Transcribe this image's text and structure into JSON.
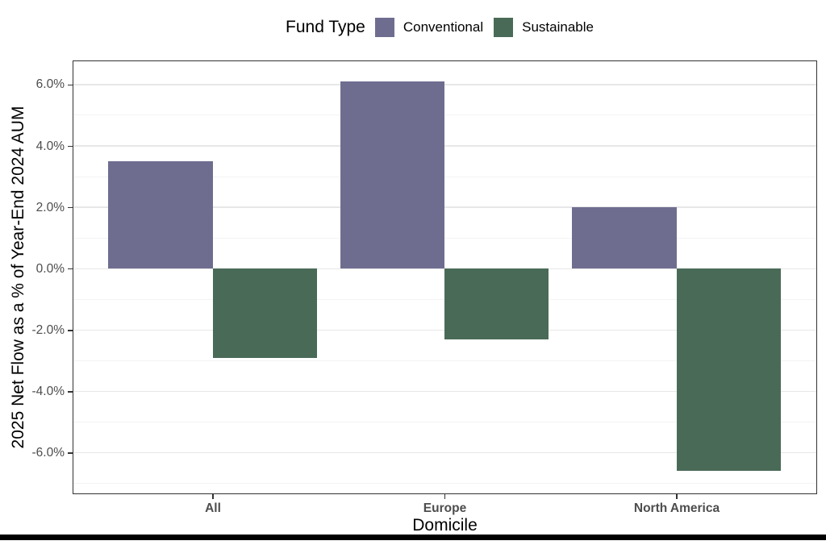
{
  "chart_data": {
    "type": "bar",
    "title": "",
    "legend_title": "Fund Type",
    "legend_position": "top",
    "categories": [
      "All",
      "Europe",
      "North America"
    ],
    "series": [
      {
        "name": "Conventional",
        "color": "#6f6d8f",
        "values": [
          3.5,
          6.1,
          2.0
        ]
      },
      {
        "name": "Sustainable",
        "color": "#4a6a58",
        "values": [
          -2.9,
          -2.3,
          -6.6
        ]
      }
    ],
    "xlabel": "Domicile",
    "ylabel": "2025 Net Flow as a % of Year-End 2024 AUM",
    "ylim": [
      -7.3,
      6.76
    ],
    "yticks": [
      6,
      4,
      2,
      0,
      -2,
      -4,
      -6
    ],
    "ytick_labels": [
      "6.0%",
      "4.0%",
      "2.0%",
      "0.0%",
      "-2.0%",
      "-4.0%",
      "-6.0%"
    ],
    "y_minor_gridlines": [
      5,
      3,
      1,
      -1,
      -3,
      -5,
      -7
    ],
    "grid": true,
    "colors": {
      "panel_border": "#333333",
      "grid_major": "#e7e7e7",
      "grid_minor": "#f3f3f3",
      "tick_text": "#4d4d4d",
      "axis_title_text": "#000000"
    }
  }
}
